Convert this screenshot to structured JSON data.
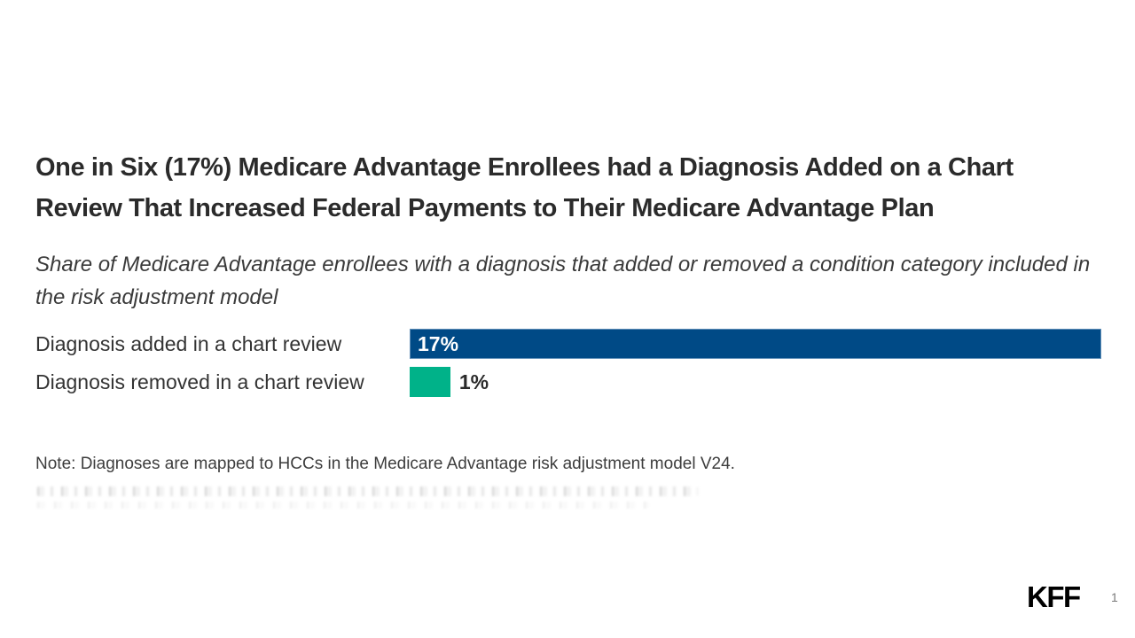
{
  "slide": {
    "title": "One in Six (17%) Medicare Advantage Enrollees had a Diagnosis Added on a Chart Review That Increased Federal Payments to Their Medicare Advantage Plan",
    "subtitle": "Share of Medicare Advantage enrollees with a diagnosis that added or removed a condition category included in the risk adjustment model",
    "note": "Note: Diagnoses are mapped to HCCs in the Medicare Advantage risk adjustment model V24.",
    "footer": {
      "logo_text": "KFF",
      "page_number": "1"
    }
  },
  "chart_data": {
    "type": "bar",
    "orientation": "horizontal",
    "title": "Share of Medicare Advantage enrollees with a diagnosis that added or removed a condition category included in the risk adjustment model",
    "categories": [
      "Diagnosis added in a chart review",
      "Diagnosis removed in a chart review"
    ],
    "values": [
      17,
      1
    ],
    "value_labels": [
      "17%",
      "1%"
    ],
    "colors": [
      "#004A86",
      "#00B289"
    ],
    "xlim": [
      0,
      17
    ],
    "grid": false,
    "legend": false,
    "value_label_placement": [
      "inside-start",
      "outside-end"
    ]
  },
  "colors": {
    "background": "#FFFFFF",
    "title_text": "#2B2B2B",
    "subtitle_text": "#3A3A3A",
    "category_label_text": "#333333",
    "note_text": "#3D3D3D",
    "bar_added": "#004A86",
    "bar_removed": "#00B289",
    "value_inside_text": "#FFFFFF",
    "value_outside_text": "#2B2B2B",
    "logo_text": "#000000",
    "page_number_text": "#7A7A7A"
  }
}
